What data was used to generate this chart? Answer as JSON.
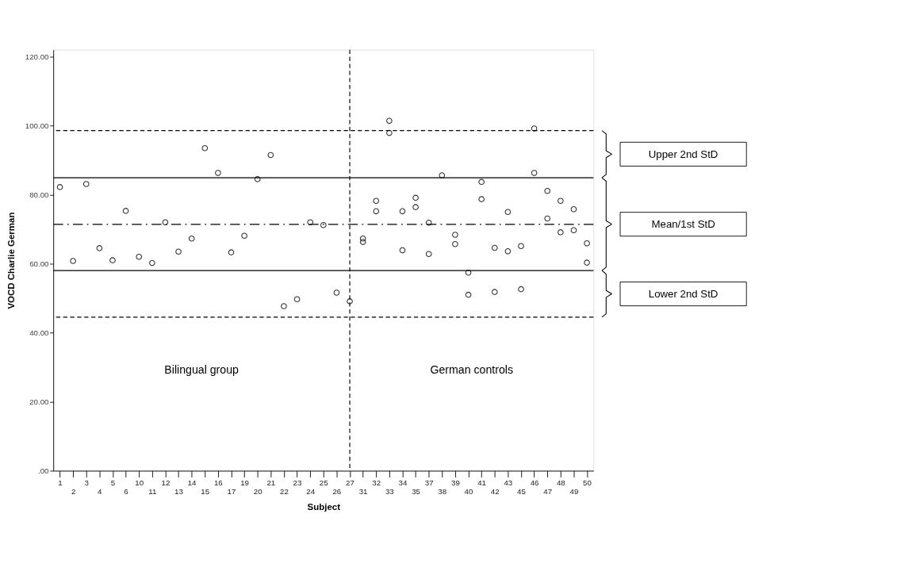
{
  "chart_data": {
    "type": "scatter",
    "xlabel": "Subject",
    "ylabel": "VOCD Charlie German",
    "categories": [
      "1",
      "2",
      "3",
      "4",
      "5",
      "6",
      "10",
      "11",
      "12",
      "13",
      "14",
      "15",
      "16",
      "17",
      "19",
      "20",
      "21",
      "22",
      "23",
      "24",
      "25",
      "26",
      "27",
      "31",
      "32",
      "33",
      "34",
      "35",
      "37",
      "38",
      "39",
      "40",
      "41",
      "42",
      "43",
      "45",
      "46",
      "47",
      "48",
      "49",
      "50"
    ],
    "series": [
      {
        "color": "#333333",
        "values": [
          82.2,
          60.8,
          83.1,
          64.5,
          61.0,
          75.3,
          62.0,
          60.2,
          72.0,
          63.5,
          67.3,
          93.5,
          86.3,
          63.3,
          68.1,
          84.5,
          91.5,
          47.7,
          49.7,
          72.0,
          71.2,
          51.6,
          49.1,
          67.3,
          78.2,
          101.4,
          75.2,
          79.1,
          71.9,
          85.6,
          68.4,
          57.4,
          83.7,
          64.6,
          75.0,
          65.1,
          99.2,
          81.1,
          78.2,
          75.8,
          65.9
        ]
      },
      {
        "color": "#333333",
        "values": [
          null,
          null,
          null,
          null,
          null,
          null,
          null,
          null,
          null,
          null,
          null,
          null,
          null,
          null,
          null,
          null,
          null,
          null,
          null,
          null,
          null,
          null,
          null,
          66.3,
          75.2,
          97.9,
          63.9,
          76.4,
          62.8,
          null,
          65.7,
          51.0,
          78.7,
          51.8,
          63.6,
          52.6,
          86.3,
          73.1,
          69.1,
          69.7,
          60.3
        ]
      }
    ],
    "ylim": [
      0,
      122
    ],
    "yticks": [
      {
        "value": 0,
        "label": ".00"
      },
      {
        "value": 20,
        "label": "20.00"
      },
      {
        "value": 40,
        "label": "40.00"
      },
      {
        "value": 60,
        "label": "60.00"
      },
      {
        "value": 80,
        "label": "80.00"
      },
      {
        "value": 100,
        "label": "100.00"
      },
      {
        "value": 120,
        "label": "120.00"
      }
    ],
    "ref_lines": [
      {
        "axis": "y",
        "value": 98.6,
        "line_style": "dashed"
      },
      {
        "axis": "y",
        "value": 84.9,
        "line_style": "solid"
      },
      {
        "axis": "y",
        "value": 71.4,
        "line_style": "dashdot"
      },
      {
        "axis": "y",
        "value": 58.0,
        "line_style": "solid"
      },
      {
        "axis": "y",
        "value": 44.5,
        "line_style": "dashed"
      },
      {
        "axis": "x",
        "value": "27",
        "line_style": "dashed"
      }
    ],
    "annotations": [
      "Bilingual group",
      "German controls",
      "Upper 2nd StD",
      "Mean/1st StD",
      "Lower 2nd StD"
    ],
    "marker": "circle",
    "grid": false,
    "legend": false
  }
}
